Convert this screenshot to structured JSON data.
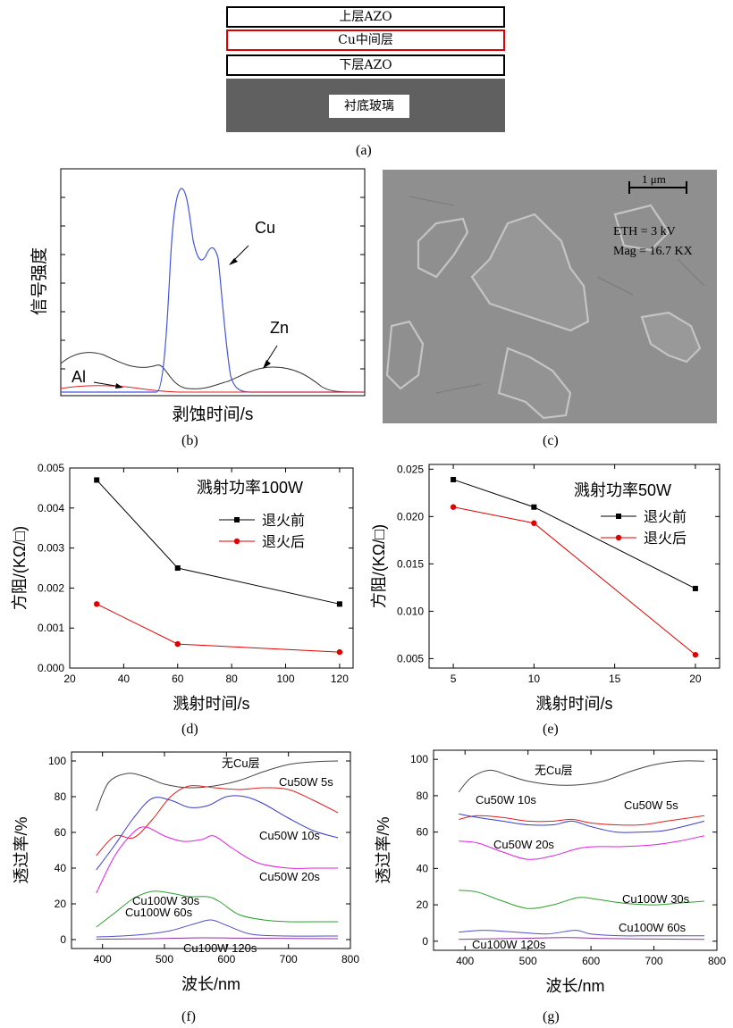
{
  "panel_a": {
    "layers": [
      "上层AZO",
      "Cu中间层",
      "下层AZO"
    ],
    "substrate": "衬底玻璃",
    "caption": "(a)"
  },
  "panel_b": {
    "ylabel": "信号强度",
    "xlabel": "剥蚀时间/s",
    "labels": {
      "cu": "Cu",
      "zn": "Zn",
      "al": "Al"
    },
    "caption": "(b)"
  },
  "panel_c": {
    "scale_bar": "1 μm",
    "eth": "ETH = 3 kV",
    "mag": "Mag = 16.7 KX",
    "caption": "(c)"
  },
  "panel_d": {
    "caption": "(d)"
  },
  "panel_e": {
    "caption": "(e)"
  },
  "panel_f": {
    "caption": "(f)"
  },
  "panel_g": {
    "caption": "(g)"
  },
  "chart_data": [
    {
      "id": "d",
      "type": "line",
      "title": "溅射功率100W",
      "xlabel": "溅射时间/s",
      "ylabel": "方阻/(KΩ/□)",
      "xlim": [
        20,
        125
      ],
      "ylim": [
        0,
        0.005
      ],
      "xticks": [
        20,
        40,
        60,
        80,
        100,
        120
      ],
      "yticks": [
        "0.000",
        "0.001",
        "0.002",
        "0.003",
        "0.004",
        "0.005"
      ],
      "x": [
        30,
        60,
        120
      ],
      "series": [
        {
          "name": "退火前",
          "color": "#000000",
          "marker": "square",
          "values": [
            0.0047,
            0.0025,
            0.0016
          ]
        },
        {
          "name": "退火后",
          "color": "#e00000",
          "marker": "circle",
          "values": [
            0.0016,
            0.0006,
            0.0004
          ]
        }
      ]
    },
    {
      "id": "e",
      "type": "line",
      "title": "溅射功率50W",
      "xlabel": "溅射时间/s",
      "ylabel": "方阻/(KΩ/□)",
      "xlim": [
        3.5,
        21.5
      ],
      "ylim": [
        0.004,
        0.0255
      ],
      "xticks": [
        5,
        10,
        15,
        20
      ],
      "yticks": [
        "0.005",
        "0.010",
        "0.015",
        "0.020",
        "0.025"
      ],
      "x": [
        5,
        10,
        20
      ],
      "series": [
        {
          "name": "退火前",
          "color": "#000000",
          "marker": "square",
          "values": [
            0.0239,
            0.021,
            0.0124
          ]
        },
        {
          "name": "退火后",
          "color": "#e00000",
          "marker": "circle",
          "values": [
            0.021,
            0.0193,
            0.0054
          ]
        }
      ]
    },
    {
      "id": "f",
      "type": "line",
      "xlabel": "波长/nm",
      "ylabel": "透过率/%",
      "xlim": [
        350,
        800
      ],
      "ylim": [
        -5,
        105
      ],
      "xticks": [
        400,
        500,
        600,
        700,
        800
      ],
      "yticks": [
        0,
        20,
        40,
        60,
        80,
        100
      ],
      "series": [
        {
          "name": "无Cu层",
          "color": "#444444",
          "x": [
            390,
            410,
            440,
            470,
            500,
            540,
            580,
            620,
            660,
            700,
            740,
            780
          ],
          "values": [
            72,
            88,
            93,
            91,
            87,
            85,
            86,
            89,
            94,
            98,
            99.5,
            100
          ]
        },
        {
          "name": "Cu50W 5s",
          "color": "#e02020",
          "x": [
            390,
            420,
            450,
            480,
            510,
            540,
            580,
            620,
            660,
            700,
            740,
            780
          ],
          "values": [
            47,
            58,
            57,
            67,
            80,
            86,
            85,
            84,
            85,
            84,
            78,
            71
          ]
        },
        {
          "name": "Cu50W 10s",
          "color": "#3a3acc",
          "x": [
            390,
            420,
            450,
            480,
            510,
            540,
            570,
            600,
            630,
            660,
            700,
            740,
            780
          ],
          "values": [
            39,
            53,
            68,
            79,
            78,
            74,
            75,
            80,
            80,
            76,
            68,
            61,
            57
          ]
        },
        {
          "name": "Cu50W 20s",
          "color": "#e020e0",
          "x": [
            390,
            420,
            450,
            470,
            500,
            530,
            560,
            580,
            610,
            650,
            700,
            740,
            780
          ],
          "values": [
            26,
            47,
            60,
            63,
            58,
            55,
            56,
            58,
            51,
            43,
            40,
            40,
            40
          ]
        },
        {
          "name": "Cu100W 30s",
          "color": "#2ca02c",
          "x": [
            390,
            420,
            450,
            480,
            510,
            540,
            570,
            590,
            620,
            660,
            700,
            740,
            780
          ],
          "values": [
            7,
            15,
            23,
            27,
            26,
            24,
            24,
            21,
            14,
            11,
            10,
            10,
            10
          ]
        },
        {
          "name": "Cu100W 60s",
          "color": "#5050c8",
          "x": [
            390,
            430,
            470,
            510,
            550,
            575,
            600,
            640,
            700,
            780
          ],
          "values": [
            1.5,
            2,
            3,
            5,
            9,
            11,
            8,
            3,
            2,
            2
          ]
        },
        {
          "name": "Cu100W 120s",
          "color": "#9030a0",
          "x": [
            390,
            480,
            560,
            620,
            700,
            780
          ],
          "values": [
            0.2,
            0.5,
            1,
            0.8,
            0.6,
            0.5
          ]
        }
      ]
    },
    {
      "id": "g",
      "type": "line",
      "xlabel": "波长/nm",
      "ylabel": "透过率/%",
      "xlim": [
        350,
        800
      ],
      "ylim": [
        -5,
        105
      ],
      "xticks": [
        400,
        500,
        600,
        700,
        800
      ],
      "yticks": [
        0,
        20,
        40,
        60,
        80,
        100
      ],
      "series": [
        {
          "name": "无Cu层",
          "color": "#444444",
          "x": [
            390,
            410,
            440,
            470,
            500,
            540,
            580,
            620,
            660,
            700,
            740,
            780
          ],
          "values": [
            82,
            90,
            94,
            91,
            88,
            86,
            86,
            88,
            93,
            97,
            99,
            99
          ]
        },
        {
          "name": "Cu50W 5s",
          "color": "#e02020",
          "x": [
            390,
            420,
            460,
            500,
            540,
            570,
            600,
            640,
            680,
            720,
            780
          ],
          "values": [
            67,
            69,
            68,
            66,
            66,
            67,
            65,
            64,
            64,
            66,
            69
          ]
        },
        {
          "name": "Cu50W 10s",
          "color": "#3a3acc",
          "x": [
            390,
            420,
            460,
            500,
            540,
            570,
            600,
            640,
            680,
            720,
            780
          ],
          "values": [
            70,
            68,
            66,
            64,
            64,
            66,
            63,
            60,
            60,
            61,
            66
          ]
        },
        {
          "name": "Cu50W 20s",
          "color": "#e020e0",
          "x": [
            390,
            420,
            460,
            500,
            540,
            580,
            610,
            650,
            700,
            740,
            780
          ],
          "values": [
            55,
            54,
            49,
            45,
            47,
            51,
            52,
            52,
            53,
            55,
            58
          ]
        },
        {
          "name": "Cu100W 30s",
          "color": "#2ca02c",
          "x": [
            390,
            420,
            460,
            500,
            540,
            580,
            610,
            650,
            700,
            740,
            780
          ],
          "values": [
            28,
            27,
            22,
            18,
            20,
            24,
            23,
            21,
            20,
            21,
            22
          ]
        },
        {
          "name": "Cu100W 60s",
          "color": "#5050c8",
          "x": [
            390,
            430,
            480,
            530,
            575,
            600,
            650,
            700,
            780
          ],
          "values": [
            5,
            6,
            5,
            4,
            6,
            4,
            3,
            3,
            3
          ]
        },
        {
          "name": "Cu100W 120s",
          "color": "#9030a0",
          "x": [
            390,
            480,
            560,
            620,
            700,
            780
          ],
          "values": [
            1,
            1.5,
            2,
            1.5,
            1.2,
            1
          ]
        }
      ]
    }
  ]
}
